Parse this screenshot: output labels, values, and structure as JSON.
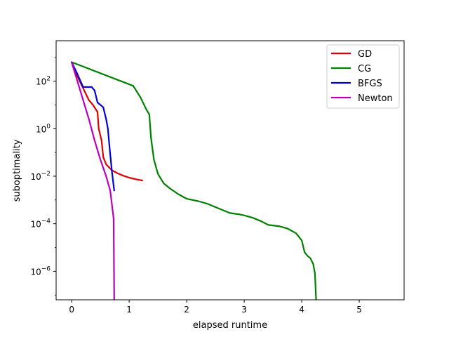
{
  "chart_data": {
    "type": "line",
    "title": "",
    "xlabel": "elapsed runtime",
    "ylabel": "suboptimality",
    "yscale": "log",
    "xlim": [
      -0.27,
      5.78
    ],
    "ylim_exp": [
      -7.2,
      3.7
    ],
    "grid": false,
    "legend_position": "top-right",
    "x_ticks": [
      {
        "value": 0,
        "label": "0"
      },
      {
        "value": 1,
        "label": "1"
      },
      {
        "value": 2,
        "label": "2"
      },
      {
        "value": 3,
        "label": "3"
      },
      {
        "value": 4,
        "label": "4"
      },
      {
        "value": 5,
        "label": "5"
      }
    ],
    "y_ticks": [
      {
        "exp": 2,
        "base": "10",
        "sup": "2"
      },
      {
        "exp": 0,
        "base": "10",
        "sup": "0"
      },
      {
        "exp": -2,
        "base": "10",
        "sup": "−2"
      },
      {
        "exp": -4,
        "base": "10",
        "sup": "−4"
      },
      {
        "exp": -6,
        "base": "10",
        "sup": "−6"
      }
    ],
    "series": [
      {
        "name": "GD",
        "color": "#e00000",
        "points": [
          [
            0,
            2.8
          ],
          [
            0.1,
            2.2
          ],
          [
            0.2,
            1.7
          ],
          [
            0.3,
            1.2
          ],
          [
            0.37,
            1.0
          ],
          [
            0.45,
            0.7
          ],
          [
            0.47,
            0.0
          ],
          [
            0.52,
            -0.5
          ],
          [
            0.55,
            -1.2
          ],
          [
            0.6,
            -1.5
          ],
          [
            0.7,
            -1.75
          ],
          [
            0.8,
            -1.88
          ],
          [
            0.9,
            -1.98
          ],
          [
            1.0,
            -2.06
          ],
          [
            1.1,
            -2.12
          ],
          [
            1.23,
            -2.18
          ]
        ]
      },
      {
        "name": "CG",
        "color": "#008000",
        "points": [
          [
            0,
            2.8
          ],
          [
            1.07,
            1.8
          ],
          [
            1.2,
            1.3
          ],
          [
            1.3,
            0.8
          ],
          [
            1.35,
            0.6
          ],
          [
            1.38,
            -0.4
          ],
          [
            1.43,
            -1.3
          ],
          [
            1.5,
            -1.9
          ],
          [
            1.6,
            -2.3
          ],
          [
            1.7,
            -2.5
          ],
          [
            1.85,
            -2.75
          ],
          [
            2.0,
            -2.95
          ],
          [
            2.1,
            -3.0
          ],
          [
            2.2,
            -3.05
          ],
          [
            2.35,
            -3.15
          ],
          [
            2.5,
            -3.3
          ],
          [
            2.6,
            -3.4
          ],
          [
            2.75,
            -3.55
          ],
          [
            2.9,
            -3.6
          ],
          [
            3.0,
            -3.65
          ],
          [
            3.15,
            -3.75
          ],
          [
            3.3,
            -3.9
          ],
          [
            3.42,
            -4.05
          ],
          [
            3.6,
            -4.1
          ],
          [
            3.75,
            -4.2
          ],
          [
            3.9,
            -4.4
          ],
          [
            4.0,
            -4.7
          ],
          [
            4.05,
            -5.2
          ],
          [
            4.1,
            -5.35
          ],
          [
            4.15,
            -5.45
          ],
          [
            4.2,
            -5.7
          ],
          [
            4.23,
            -6.1
          ],
          [
            4.25,
            -7.2
          ]
        ]
      },
      {
        "name": "BFGS",
        "color": "#0000dd",
        "points": [
          [
            0,
            2.8
          ],
          [
            0.1,
            2.3
          ],
          [
            0.2,
            1.75
          ],
          [
            0.35,
            1.75
          ],
          [
            0.4,
            1.6
          ],
          [
            0.45,
            1.1
          ],
          [
            0.5,
            1.0
          ],
          [
            0.55,
            0.9
          ],
          [
            0.6,
            0.4
          ],
          [
            0.63,
            0.0
          ],
          [
            0.66,
            -0.8
          ],
          [
            0.7,
            -1.8
          ],
          [
            0.74,
            -2.6
          ]
        ]
      },
      {
        "name": "Newton",
        "color": "#bb00bb",
        "points": [
          [
            0,
            2.8
          ],
          [
            0.1,
            2.0
          ],
          [
            0.2,
            1.2
          ],
          [
            0.3,
            0.4
          ],
          [
            0.4,
            -0.5
          ],
          [
            0.5,
            -1.3
          ],
          [
            0.6,
            -2.0
          ],
          [
            0.67,
            -2.6
          ],
          [
            0.73,
            -3.8
          ],
          [
            0.74,
            -7.2
          ]
        ]
      }
    ]
  }
}
